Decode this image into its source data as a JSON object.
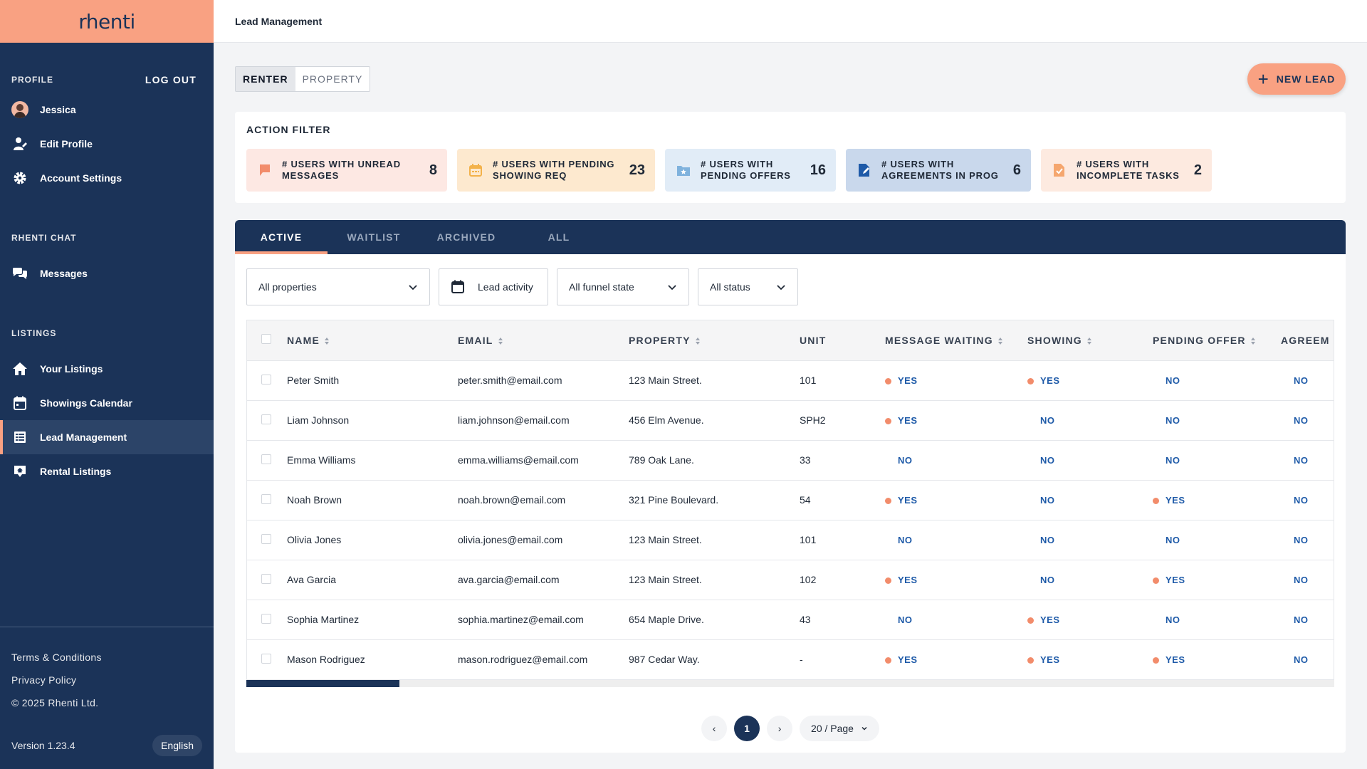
{
  "brand": "rhenti",
  "sidebar": {
    "profile_title": "PROFILE",
    "logout": "LOG OUT",
    "profile_items": [
      {
        "label": "Jessica",
        "icon": "avatar"
      },
      {
        "label": "Edit Profile",
        "icon": "edit-profile-icon"
      },
      {
        "label": "Account Settings",
        "icon": "gear-icon"
      }
    ],
    "chat_title": "RHENTI CHAT",
    "chat_items": [
      {
        "label": "Messages",
        "icon": "chat-bubbles-icon"
      }
    ],
    "listings_title": "LISTINGS",
    "listing_items": [
      {
        "label": "Your Listings",
        "icon": "home-icon"
      },
      {
        "label": "Showings Calendar",
        "icon": "calendar-icon"
      },
      {
        "label": "Lead Management",
        "icon": "table-icon"
      },
      {
        "label": "Rental Listings",
        "icon": "rental-pin-icon"
      }
    ],
    "footer_links": [
      "Terms & Conditions",
      "Privacy Policy",
      "© 2025 Rhenti Ltd."
    ],
    "version": "Version 1.23.4",
    "language": "English"
  },
  "header": {
    "title": "Lead Management"
  },
  "toggle": {
    "renter": "RENTER",
    "property": "PROPERTY"
  },
  "new_lead": "NEW LEAD",
  "action_filter": {
    "title": "ACTION FILTER",
    "tiles": [
      {
        "label": "# USERS WITH UNREAD\nMESSAGES",
        "count": "8",
        "icon": "flag-icon",
        "color": "#f28c6b"
      },
      {
        "label": "# USERS WITH PENDING\nSHOWING REQ",
        "count": "23",
        "icon": "calendar-icon",
        "color": "#f3b24a"
      },
      {
        "label": "# USERS WITH\nPENDING OFFERS",
        "count": "16",
        "icon": "star-folder-icon",
        "color": "#7fb2dd"
      },
      {
        "label": "# USERS WITH\nAGREEMENTS IN PROG",
        "count": "6",
        "icon": "document-edit-icon",
        "color": "#1e5aa8"
      },
      {
        "label": "# USERS WITH\nINCOMPLETE TASKS",
        "count": "2",
        "icon": "task-file-icon",
        "color": "#f5a66e"
      }
    ]
  },
  "tabs": [
    "ACTIVE",
    "WAITLIST",
    "ARCHIVED",
    "ALL"
  ],
  "filters": {
    "properties": "All properties",
    "activity": "Lead activity",
    "funnel": "All funnel state",
    "status": "All status"
  },
  "table": {
    "columns": [
      "NAME",
      "EMAIL",
      "PROPERTY",
      "UNIT",
      "MESSAGE WAITING",
      "SHOWING",
      "PENDING OFFER",
      "AGREEM"
    ],
    "rows": [
      {
        "name": "Peter Smith",
        "email": "peter.smith@email.com",
        "property": "123 Main Street.",
        "unit": "101",
        "message": "YES",
        "showing": "YES",
        "offer": "NO",
        "agreement": "NO"
      },
      {
        "name": "Liam Johnson",
        "email": "liam.johnson@email.com",
        "property": "456 Elm Avenue.",
        "unit": "SPH2",
        "message": "YES",
        "showing": "NO",
        "offer": "NO",
        "agreement": "NO"
      },
      {
        "name": "Emma Williams",
        "email": "emma.williams@email.com",
        "property": "789 Oak Lane.",
        "unit": "33",
        "message": "NO",
        "showing": "NO",
        "offer": "NO",
        "agreement": "NO"
      },
      {
        "name": "Noah Brown",
        "email": "noah.brown@email.com",
        "property": "321 Pine Boulevard.",
        "unit": "54",
        "message": "YES",
        "showing": "NO",
        "offer": "YES",
        "agreement": "NO"
      },
      {
        "name": "Olivia Jones",
        "email": "olivia.jones@email.com",
        "property": "123 Main Street.",
        "unit": "101",
        "message": "NO",
        "showing": "NO",
        "offer": "NO",
        "agreement": "NO"
      },
      {
        "name": "Ava Garcia",
        "email": "ava.garcia@email.com",
        "property": "123 Main Street.",
        "unit": "102",
        "message": "YES",
        "showing": "NO",
        "offer": "YES",
        "agreement": "NO"
      },
      {
        "name": "Sophia Martinez",
        "email": "sophia.martinez@email.com",
        "property": "654 Maple Drive.",
        "unit": "43",
        "message": "NO",
        "showing": "YES",
        "offer": "NO",
        "agreement": "NO"
      },
      {
        "name": "Mason Rodriguez",
        "email": "mason.rodriguez@email.com",
        "property": "987 Cedar Way.",
        "unit": "-",
        "message": "YES",
        "showing": "YES",
        "offer": "YES",
        "agreement": "NO"
      }
    ]
  },
  "pagination": {
    "prev": "‹",
    "current": "1",
    "next": "›",
    "page_size": "20 / Page"
  },
  "colors": {
    "navy": "#1b3358",
    "accent": "#f9a182",
    "yes_dot": "#f28c6b",
    "link_blue": "#1e5aa8"
  }
}
